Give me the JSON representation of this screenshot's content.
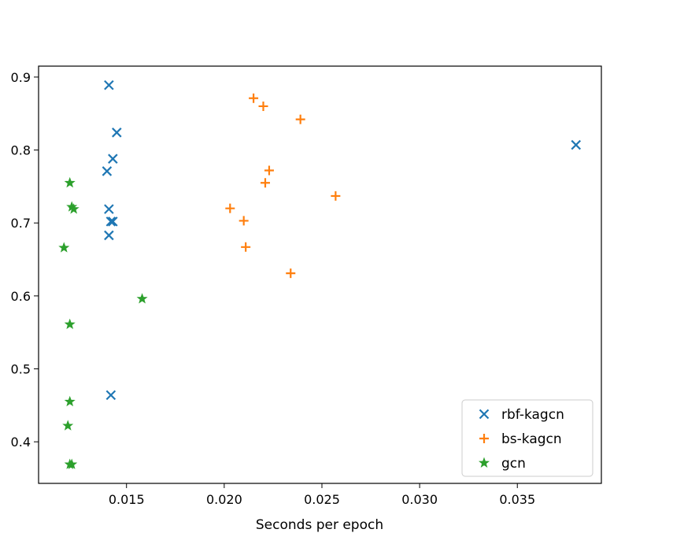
{
  "chart_data": {
    "type": "scatter",
    "title": "",
    "xlabel": "Seconds per epoch",
    "ylabel": "",
    "xlim": [
      0.0105,
      0.0393
    ],
    "ylim": [
      0.343,
      0.915
    ],
    "xticks": [
      0.015,
      0.02,
      0.025,
      0.03,
      0.035
    ],
    "xtick_labels": [
      "0.015",
      "0.020",
      "0.025",
      "0.030",
      "0.035"
    ],
    "yticks": [
      0.4,
      0.5,
      0.6,
      0.7,
      0.8,
      0.9
    ],
    "ytick_labels": [
      "0.4",
      "0.5",
      "0.6",
      "0.7",
      "0.8",
      "0.9"
    ],
    "grid": false,
    "legend_position": "lower-right",
    "series": [
      {
        "name": "rbf-kagcn",
        "marker": "x",
        "color": "#1f77b4",
        "points": [
          {
            "x": 0.0141,
            "y": 0.889
          },
          {
            "x": 0.0145,
            "y": 0.824
          },
          {
            "x": 0.0143,
            "y": 0.788
          },
          {
            "x": 0.014,
            "y": 0.771
          },
          {
            "x": 0.0141,
            "y": 0.719
          },
          {
            "x": 0.0142,
            "y": 0.702
          },
          {
            "x": 0.0143,
            "y": 0.702
          },
          {
            "x": 0.0141,
            "y": 0.683
          },
          {
            "x": 0.0142,
            "y": 0.464
          },
          {
            "x": 0.038,
            "y": 0.807
          }
        ]
      },
      {
        "name": "bs-kagcn",
        "marker": "+",
        "color": "#ff7f0e",
        "points": [
          {
            "x": 0.0215,
            "y": 0.871
          },
          {
            "x": 0.022,
            "y": 0.86
          },
          {
            "x": 0.0239,
            "y": 0.842
          },
          {
            "x": 0.0223,
            "y": 0.772
          },
          {
            "x": 0.0221,
            "y": 0.755
          },
          {
            "x": 0.0257,
            "y": 0.737
          },
          {
            "x": 0.0203,
            "y": 0.72
          },
          {
            "x": 0.021,
            "y": 0.703
          },
          {
            "x": 0.0211,
            "y": 0.667
          },
          {
            "x": 0.0234,
            "y": 0.631
          }
        ]
      },
      {
        "name": "gcn",
        "marker": "star",
        "color": "#2ca02c",
        "points": [
          {
            "x": 0.0121,
            "y": 0.755
          },
          {
            "x": 0.0122,
            "y": 0.722
          },
          {
            "x": 0.0123,
            "y": 0.719
          },
          {
            "x": 0.0118,
            "y": 0.666
          },
          {
            "x": 0.0158,
            "y": 0.596
          },
          {
            "x": 0.0121,
            "y": 0.561
          },
          {
            "x": 0.0121,
            "y": 0.455
          },
          {
            "x": 0.012,
            "y": 0.422
          },
          {
            "x": 0.0121,
            "y": 0.369
          },
          {
            "x": 0.0122,
            "y": 0.369
          }
        ]
      }
    ]
  }
}
